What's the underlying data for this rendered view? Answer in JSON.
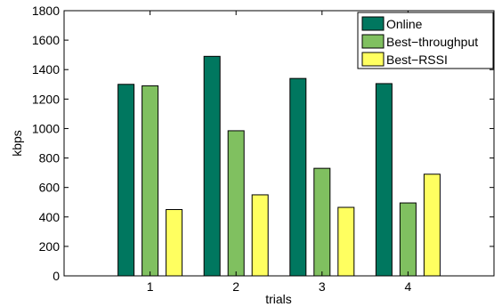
{
  "chart_data": {
    "type": "bar",
    "categories": [
      "1",
      "2",
      "3",
      "4"
    ],
    "series": [
      {
        "name": "Online",
        "color": "#00775f",
        "values": [
          1300,
          1490,
          1340,
          1305
        ]
      },
      {
        "name": "Best−throughput",
        "color": "#80c060",
        "values": [
          1290,
          985,
          730,
          495
        ]
      },
      {
        "name": "Best−RSSI",
        "color": "#ffff60",
        "values": [
          450,
          550,
          465,
          690
        ]
      }
    ],
    "xlabel": "trials",
    "ylabel": "kbps",
    "xlim": [
      0,
      5
    ],
    "ylim": [
      0,
      1800
    ],
    "yticks": [
      0,
      200,
      400,
      600,
      800,
      1000,
      1200,
      1400,
      1600,
      1800
    ],
    "legend_position": "top-right",
    "grid": false
  }
}
